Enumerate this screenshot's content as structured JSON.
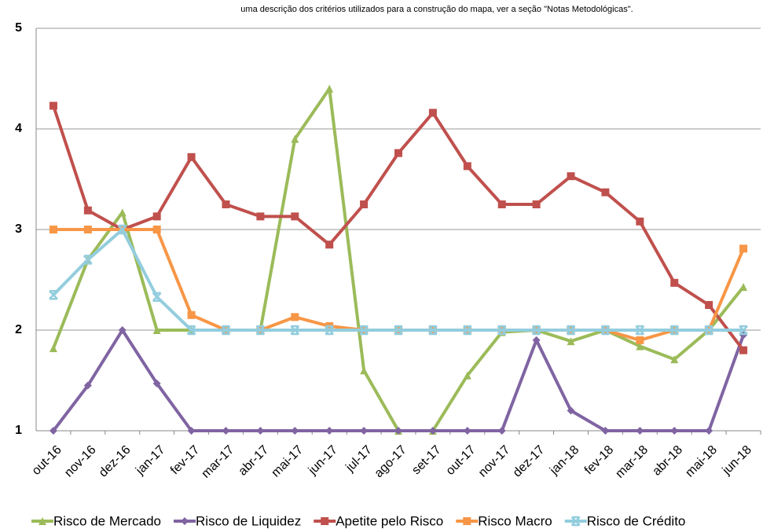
{
  "chart_data": {
    "type": "line",
    "subtitle": "uma descrição dos critérios utilizados para a construção do mapa, ver a seção \"Notas Metodológicas\".",
    "categories": [
      "out-16",
      "nov-16",
      "dez-16",
      "jan-17",
      "fev-17",
      "mar-17",
      "abr-17",
      "mai-17",
      "jun-17",
      "jul-17",
      "ago-17",
      "set-17",
      "out-17",
      "nov-17",
      "dez-17",
      "jan-18",
      "fev-18",
      "mar-18",
      "abr-18",
      "mai-18",
      "jun-18"
    ],
    "series": [
      {
        "name": "Risco de Mercado",
        "color": "#9bbb59",
        "marker": "triangle",
        "values": [
          1.82,
          2.7,
          3.17,
          2.0,
          2.0,
          2.0,
          2.0,
          3.9,
          4.4,
          1.6,
          1.0,
          1.0,
          1.55,
          1.98,
          2.0,
          1.89,
          2.0,
          1.84,
          1.71,
          2.0,
          2.43
        ]
      },
      {
        "name": "Risco de Liquidez",
        "color": "#8064a2",
        "marker": "diamond",
        "values": [
          1.0,
          1.45,
          2.0,
          1.47,
          1.0,
          1.0,
          1.0,
          1.0,
          1.0,
          1.0,
          1.0,
          1.0,
          1.0,
          1.0,
          1.9,
          1.2,
          1.0,
          1.0,
          1.0,
          1.0,
          1.95
        ]
      },
      {
        "name": "Apetite pelo Risco",
        "color": "#c0504d",
        "marker": "square",
        "values": [
          4.23,
          3.19,
          3.0,
          3.13,
          3.72,
          3.25,
          3.13,
          3.13,
          2.85,
          3.25,
          3.76,
          4.16,
          3.63,
          3.25,
          3.25,
          3.53,
          3.37,
          3.08,
          2.47,
          2.25,
          1.8
        ]
      },
      {
        "name": "Risco Macro",
        "color": "#f79646",
        "marker": "square",
        "values": [
          3.0,
          3.0,
          3.0,
          3.0,
          2.15,
          2.0,
          2.0,
          2.13,
          2.04,
          2.0,
          2.0,
          2.0,
          2.0,
          2.0,
          2.0,
          2.0,
          2.0,
          1.9,
          2.0,
          2.0,
          2.81
        ]
      },
      {
        "name": "Risco de Crédito",
        "color": "#93cddd",
        "marker": "x",
        "values": [
          2.35,
          2.7,
          3.0,
          2.33,
          2.0,
          2.0,
          2.0,
          2.0,
          2.0,
          2.0,
          2.0,
          2.0,
          2.0,
          2.0,
          2.0,
          2.0,
          2.0,
          2.0,
          2.0,
          2.0,
          2.0
        ]
      }
    ],
    "ylim": [
      1,
      5
    ],
    "yticks": [
      1,
      2,
      3,
      4,
      5
    ],
    "grid": true,
    "legend": "bottom"
  }
}
